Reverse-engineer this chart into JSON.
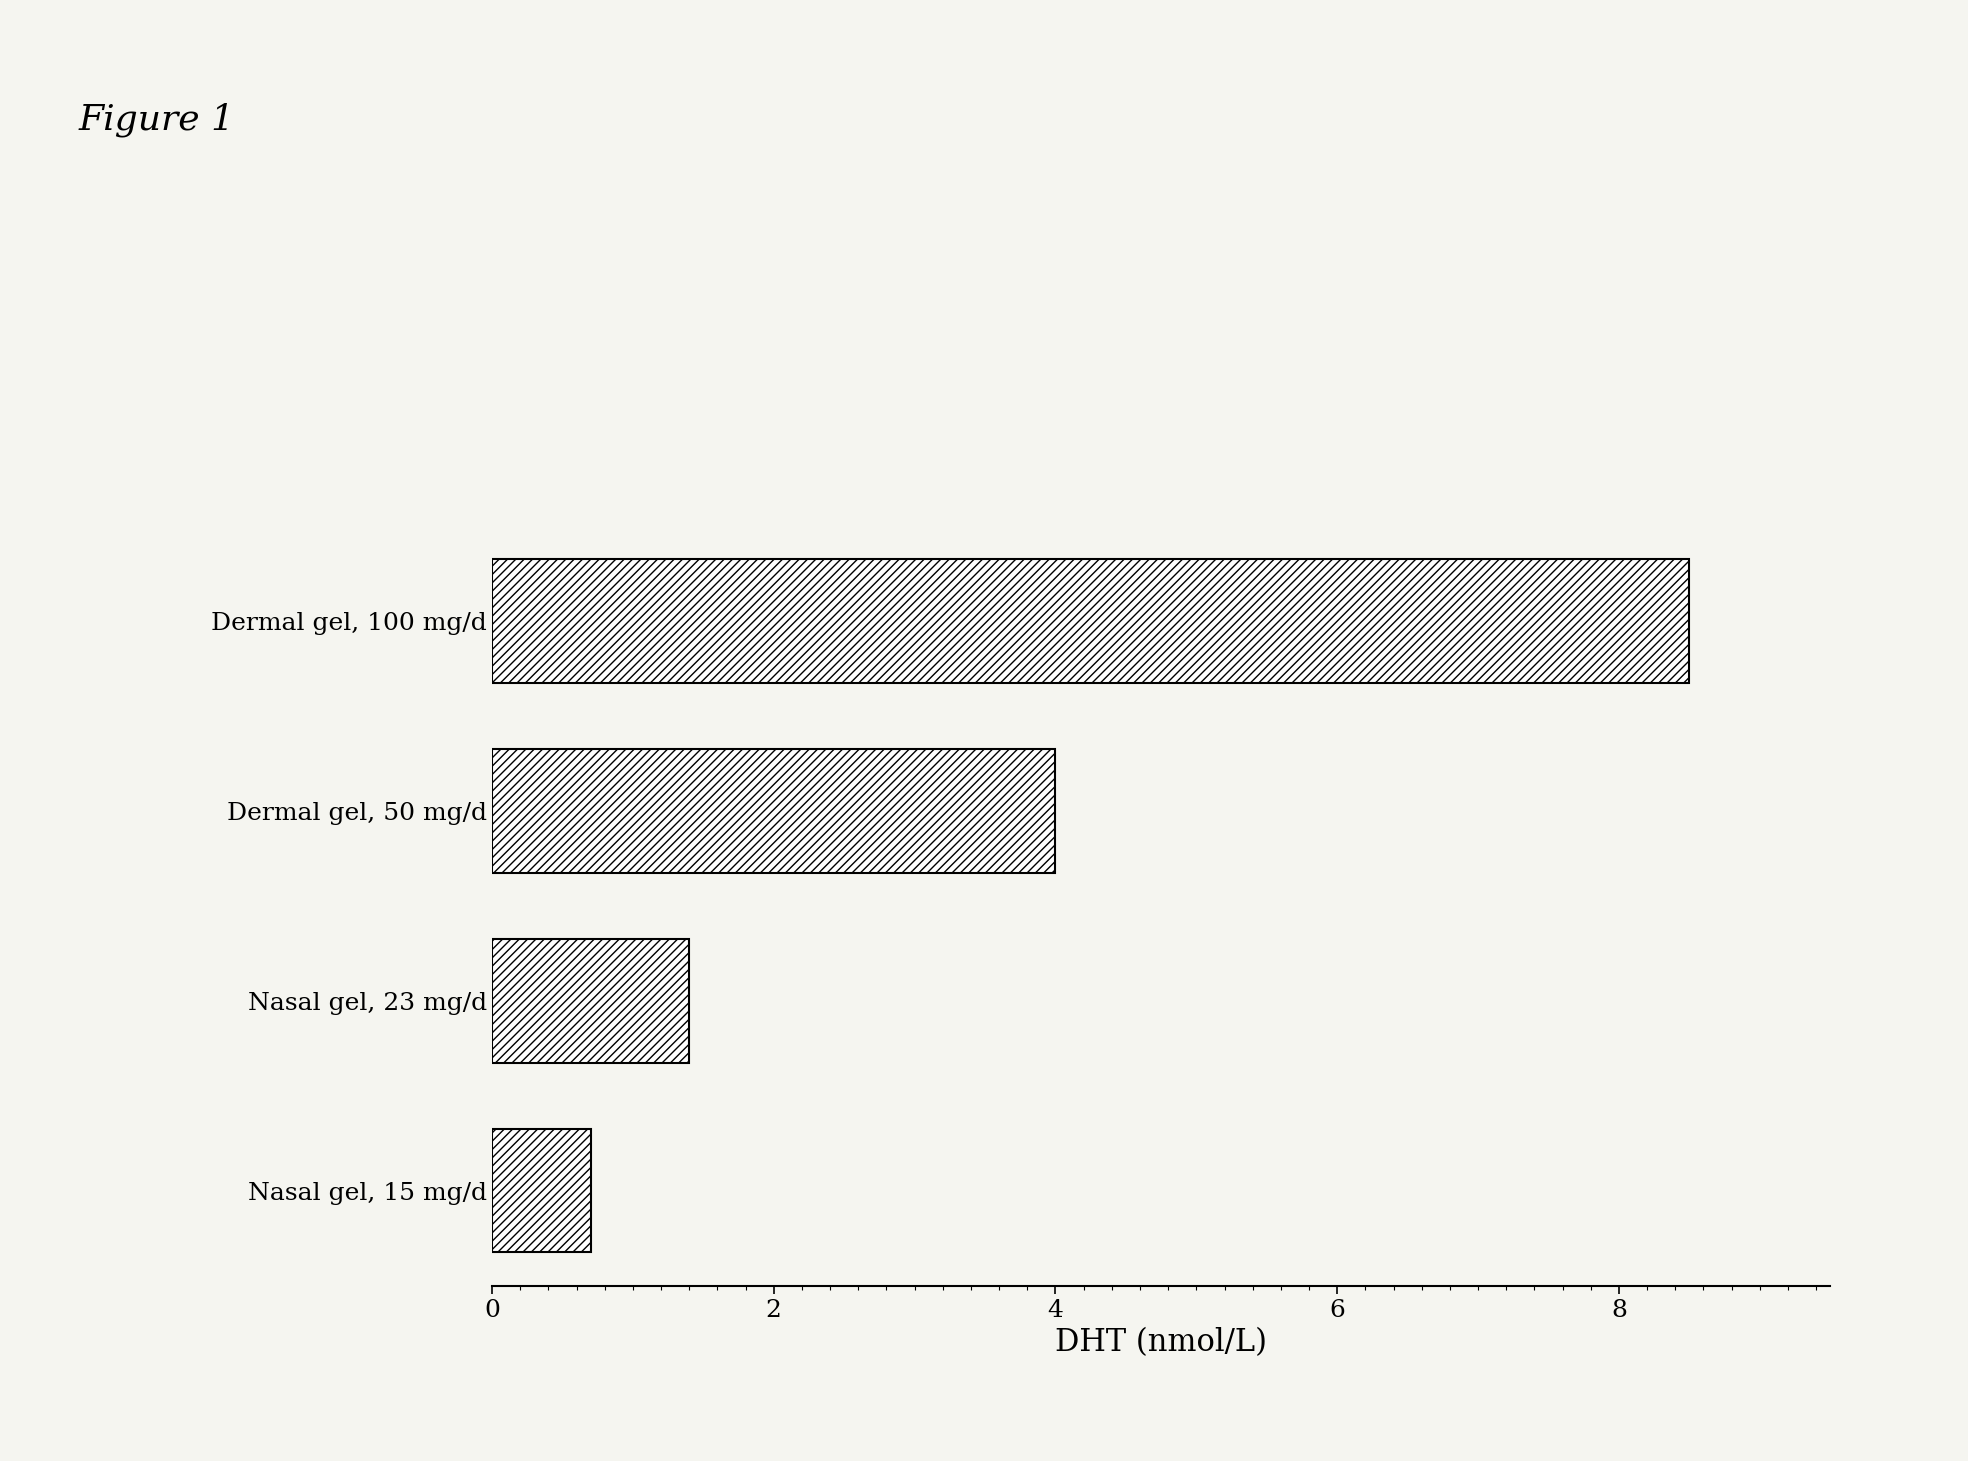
{
  "title": "Figure 1",
  "categories": [
    "Dermal gel, 100 mg/d",
    "Dermal gel, 50 mg/d",
    "Nasal gel, 23 mg/d",
    "Nasal gel, 15 mg/d"
  ],
  "values": [
    8.5,
    4.0,
    1.4,
    0.7
  ],
  "xlabel": "DHT (nmol/L)",
  "xlim": [
    0,
    9.5
  ],
  "xticks": [
    0,
    2,
    4,
    6,
    8
  ],
  "bar_color": "#ffffff",
  "bar_edgecolor": "#000000",
  "hatch": "////",
  "bar_height": 0.65,
  "background_color": "#f5f5f0",
  "title_fontsize": 26,
  "label_fontsize": 18,
  "tick_fontsize": 18,
  "xlabel_fontsize": 22
}
